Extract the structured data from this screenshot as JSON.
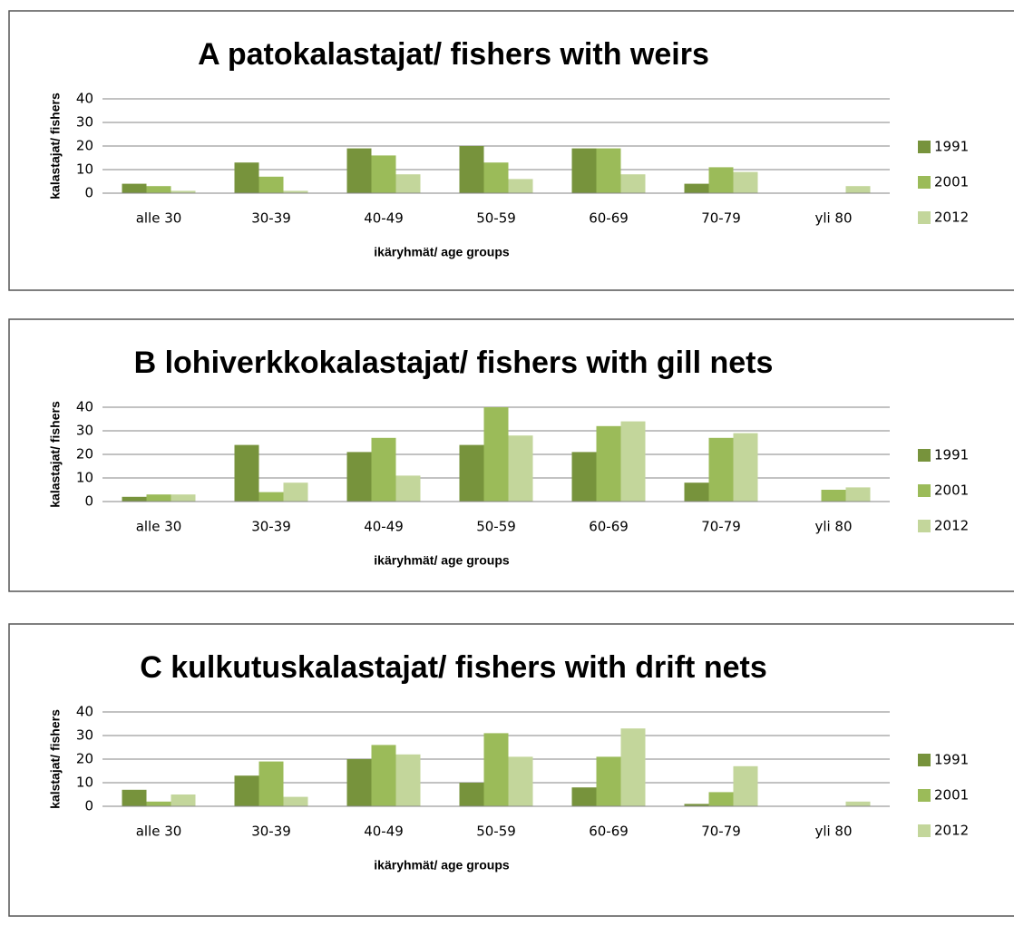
{
  "chart_data": [
    {
      "type": "bar",
      "title": "A patokalastajat/ fishers with weirs",
      "x_label": "ikäryhmät/ age groups",
      "y_label": "kalastajat/ fishers",
      "categories": [
        "alle 30",
        "30-39",
        "40-49",
        "50-59",
        "60-69",
        "70-79",
        "yli 80"
      ],
      "series": [
        {
          "name": "1991",
          "color": "#77933c",
          "values": [
            4,
            13,
            19,
            20,
            19,
            4,
            0
          ]
        },
        {
          "name": "2001",
          "color": "#9bbb59",
          "values": [
            3,
            7,
            16,
            13,
            19,
            11,
            0
          ]
        },
        {
          "name": "2012",
          "color": "#c3d69b",
          "values": [
            1,
            1,
            8,
            6,
            8,
            9,
            3
          ]
        }
      ],
      "ylim": [
        0,
        40
      ],
      "yticks": [
        0,
        10,
        20,
        30,
        40
      ],
      "grid": true,
      "legend": "right"
    },
    {
      "type": "bar",
      "title": "B lohiverkkokalastajat/ fishers with gill nets",
      "x_label": "ikäryhmät/ age groups",
      "y_label": "kalastajat/ fishers",
      "categories": [
        "alle 30",
        "30-39",
        "40-49",
        "50-59",
        "60-69",
        "70-79",
        "yli 80"
      ],
      "series": [
        {
          "name": "1991",
          "color": "#77933c",
          "values": [
            2,
            24,
            21,
            24,
            21,
            8,
            0
          ]
        },
        {
          "name": "2001",
          "color": "#9bbb59",
          "values": [
            3,
            4,
            27,
            40,
            32,
            27,
            5
          ]
        },
        {
          "name": "2012",
          "color": "#c3d69b",
          "values": [
            3,
            8,
            11,
            28,
            34,
            29,
            6
          ]
        }
      ],
      "ylim": [
        0,
        40
      ],
      "yticks": [
        0,
        10,
        20,
        30,
        40
      ],
      "grid": true,
      "legend": "right"
    },
    {
      "type": "bar",
      "title": "C kulkutuskalastajat/ fishers with drift nets",
      "x_label": "ikäryhmät/ age groups",
      "y_label": "kalstajat/ fishers",
      "categories": [
        "alle 30",
        "30-39",
        "40-49",
        "50-59",
        "60-69",
        "70-79",
        "yli 80"
      ],
      "series": [
        {
          "name": "1991",
          "color": "#77933c",
          "values": [
            7,
            13,
            20,
            10,
            8,
            1,
            0
          ]
        },
        {
          "name": "2001",
          "color": "#9bbb59",
          "values": [
            2,
            19,
            26,
            31,
            21,
            6,
            0
          ]
        },
        {
          "name": "2012",
          "color": "#c3d69b",
          "values": [
            5,
            4,
            22,
            21,
            33,
            17,
            2
          ]
        }
      ],
      "ylim": [
        0,
        40
      ],
      "yticks": [
        0,
        10,
        20,
        30,
        40
      ],
      "grid": true,
      "legend": "right"
    }
  ]
}
